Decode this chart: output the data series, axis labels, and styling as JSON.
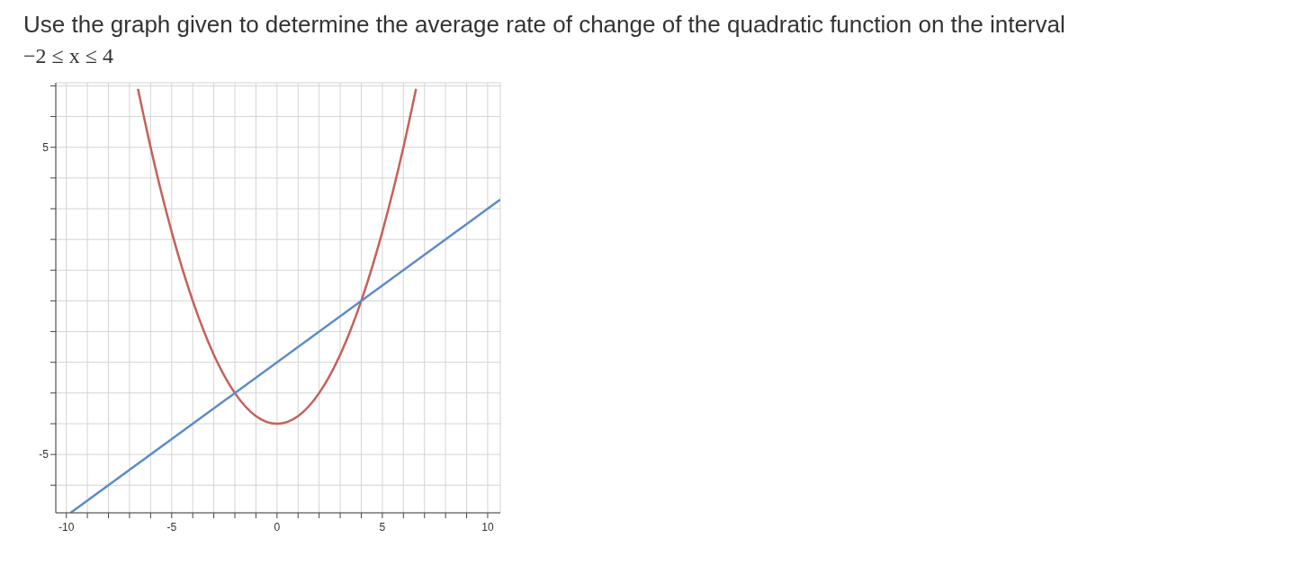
{
  "chart_data": {
    "type": "line",
    "title": "Use the graph given to determine the average rate of change of the quadratic function on the interval",
    "subtitle": "−2 ≤ x ≤ 4",
    "series": [
      {
        "color": "#c5605a",
        "x": [
          -6.6,
          -6,
          -5,
          -4,
          -3,
          -2,
          -1,
          0,
          1,
          2,
          3,
          4,
          5,
          6,
          6.6
        ],
        "values": [
          6.9,
          5,
          2.25,
          0,
          -1.75,
          -3,
          -3.75,
          -4,
          -3.75,
          -3,
          -1.75,
          0,
          2.25,
          5,
          6.9
        ]
      },
      {
        "color": "#5b8bc9",
        "x": [
          -9.8,
          10.6
        ],
        "values": [
          -6.9,
          3.3
        ]
      }
    ],
    "xlim": [
      -10.5,
      10.6
    ],
    "ylim": [
      -6.9,
      7.1
    ],
    "xticks": [
      -10,
      {
        "value": -9,
        "label": null
      },
      {
        "value": -8,
        "label": null
      },
      {
        "value": -7,
        "label": null
      },
      {
        "value": -6,
        "label": null
      },
      -5,
      {
        "value": -4,
        "label": null
      },
      {
        "value": -3,
        "label": null
      },
      {
        "value": -2,
        "label": null
      },
      {
        "value": -1,
        "label": null
      },
      0,
      {
        "value": 1,
        "label": null
      },
      {
        "value": 2,
        "label": null
      },
      {
        "value": 3,
        "label": null
      },
      {
        "value": 4,
        "label": null
      },
      5,
      {
        "value": 6,
        "label": null
      },
      {
        "value": 7,
        "label": null
      },
      {
        "value": 8,
        "label": null
      },
      {
        "value": 9,
        "label": null
      },
      10
    ],
    "yticks": [
      {
        "value": -6,
        "label": null
      },
      -5,
      {
        "value": -4,
        "label": null
      },
      {
        "value": -3,
        "label": null
      },
      {
        "value": -2,
        "label": null
      },
      {
        "value": -1,
        "label": null
      },
      {
        "value": 0,
        "label": null
      },
      {
        "value": 1,
        "label": null
      },
      {
        "value": 2,
        "label": null
      },
      {
        "value": 3,
        "label": null
      },
      {
        "value": 4,
        "label": null
      },
      5,
      {
        "value": 6,
        "label": null
      },
      {
        "value": 7,
        "label": null
      }
    ],
    "grid": true,
    "marker": "none",
    "line_style": "solid"
  }
}
